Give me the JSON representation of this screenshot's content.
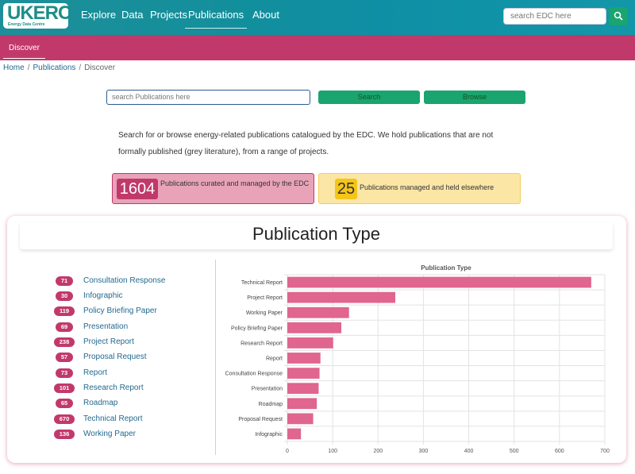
{
  "header": {
    "logo_text": "UKERC",
    "logo_subtext": "Energy Data Centre",
    "nav": [
      {
        "label": "Explore"
      },
      {
        "label": "Data"
      },
      {
        "label": "Projects"
      },
      {
        "label": "Publications",
        "active": true
      },
      {
        "label": "About"
      }
    ],
    "search_placeholder": "search EDC here"
  },
  "subnav": {
    "items": [
      {
        "label": "Discover"
      }
    ]
  },
  "breadcrumb": [
    "Home",
    "Publications",
    "Discover"
  ],
  "publications_search": {
    "placeholder": "search Publications here",
    "search_label": "Search",
    "browse_label": "Browse"
  },
  "intro": "Search for or browse energy-related publications catalogued by the EDC. We hold publications that are not formally published (grey literature), from a range of projects.",
  "stats": [
    {
      "value": "1604",
      "label": "Publications curated and managed by the EDC"
    },
    {
      "value": "25",
      "label": "Publications managed and held elsewhere"
    }
  ],
  "panel": {
    "title": "Publication Type",
    "types": [
      {
        "count": "71",
        "label": "Consultation Response"
      },
      {
        "count": "30",
        "label": "Infographic"
      },
      {
        "count": "119",
        "label": "Policy Briefing Paper"
      },
      {
        "count": "69",
        "label": "Presentation"
      },
      {
        "count": "238",
        "label": "Project Report"
      },
      {
        "count": "57",
        "label": "Proposal Request"
      },
      {
        "count": "73",
        "label": "Report"
      },
      {
        "count": "101",
        "label": "Research Report"
      },
      {
        "count": "65",
        "label": "Roadmap"
      },
      {
        "count": "670",
        "label": "Technical Report"
      },
      {
        "count": "136",
        "label": "Working Paper"
      }
    ]
  },
  "chart_data": {
    "type": "bar",
    "orientation": "horizontal",
    "title": "Publication Type",
    "categories": [
      "Technical Report",
      "Project Report",
      "Working Paper",
      "Policy Briefing Paper",
      "Research Report",
      "Report",
      "Consultation Response",
      "Presentation",
      "Roadmap",
      "Proposal Request",
      "Infographic"
    ],
    "values": [
      670,
      238,
      136,
      119,
      101,
      73,
      71,
      69,
      65,
      57,
      30
    ],
    "xlim": [
      0,
      700
    ],
    "xticks": [
      0,
      100,
      200,
      300,
      400,
      500,
      600,
      700
    ],
    "grid": true,
    "bar_color": "#e0658f"
  },
  "colors": {
    "brand_teal": "#138f9b",
    "brand_magenta": "#c1396a",
    "action_green": "#1aa46f",
    "highlight_yellow": "#f5c518"
  }
}
